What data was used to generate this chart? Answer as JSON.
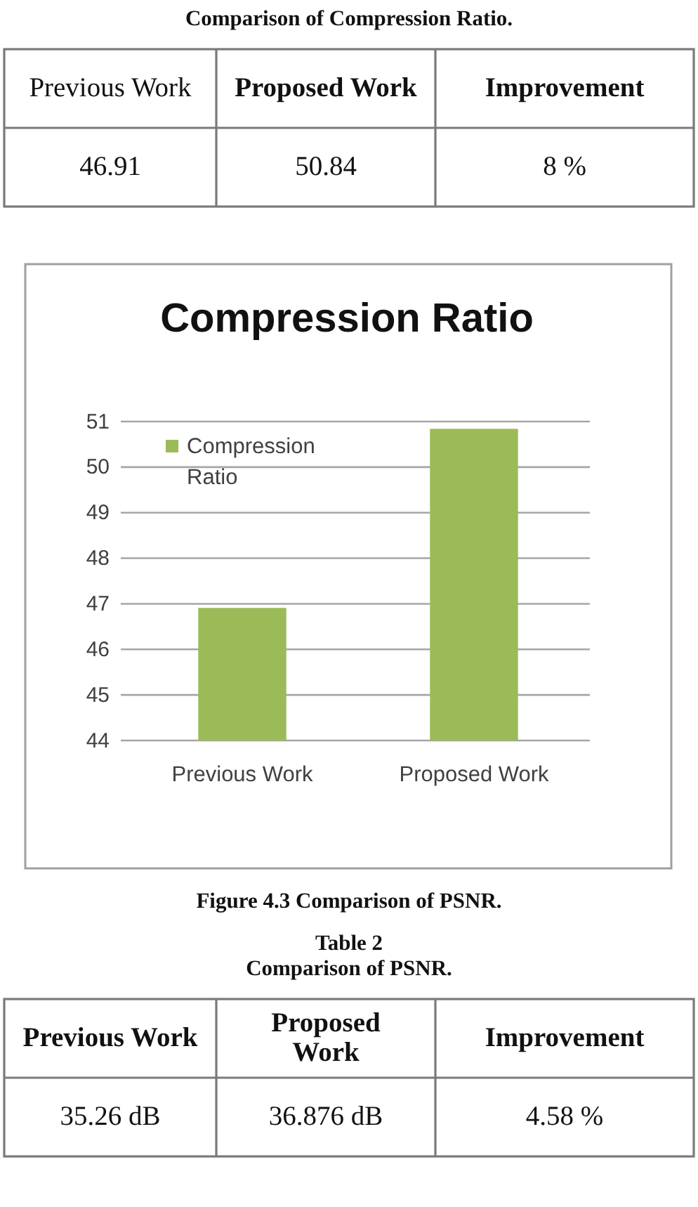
{
  "chart_data": [
    {
      "type": "other",
      "title": "Comparison of Compression Ratio.",
      "annotations": [
        "Previous Work",
        "Proposed Work",
        "Improvement",
        "46.91",
        "50.84",
        "8 %"
      ]
    },
    {
      "type": "bar",
      "title": "Compression Ratio",
      "categories": [
        "Previous Work",
        "Proposed Work"
      ],
      "series": [
        {
          "name": "Compression Ratio",
          "color": "#9bbb59",
          "values": [
            46.91,
            50.84
          ]
        }
      ],
      "ylim": [
        44,
        51
      ],
      "yticks": [
        44,
        45,
        46,
        47,
        48,
        49,
        50,
        51
      ],
      "grid": "y",
      "legend": "top left",
      "annotations": [
        "Figure 4.3 Comparison of PSNR."
      ]
    },
    {
      "type": "other",
      "title": "Table 2",
      "subtitle": "Comparison of PSNR.",
      "annotations": [
        "Previous Work",
        "Proposed Work",
        "Improvement",
        "35.26 dB",
        "36.876 dB",
        "4.58 %"
      ]
    }
  ]
}
